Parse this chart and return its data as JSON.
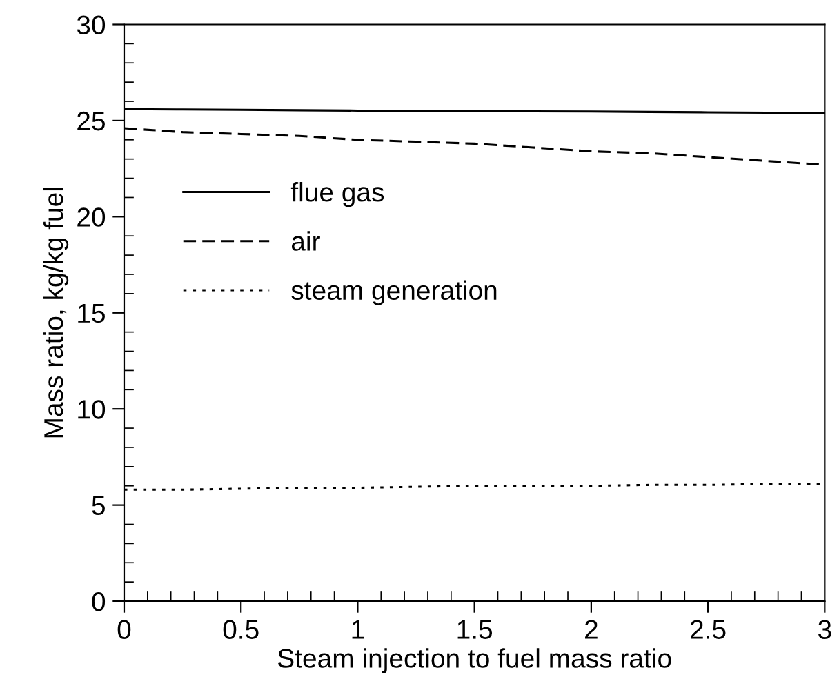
{
  "chart_data": {
    "type": "line",
    "xlabel": "Steam injection to fuel mass ratio",
    "ylabel": "Mass ratio, kg/kg fuel",
    "x": [
      0,
      0.25,
      0.5,
      0.75,
      1,
      1.25,
      1.5,
      1.75,
      2,
      2.25,
      2.5,
      2.75,
      3
    ],
    "series": [
      {
        "name": "flue gas",
        "color": "#000000",
        "line_style": "solid",
        "values": [
          25.6,
          25.58,
          25.56,
          25.54,
          25.52,
          25.5,
          25.5,
          25.48,
          25.47,
          25.45,
          25.43,
          25.41,
          25.4
        ]
      },
      {
        "name": "air",
        "color": "#000000",
        "line_style": "dashed",
        "values": [
          24.6,
          24.4,
          24.3,
          24.2,
          24.0,
          23.9,
          23.8,
          23.6,
          23.4,
          23.3,
          23.1,
          22.9,
          22.7
        ]
      },
      {
        "name": "steam generation",
        "color": "#000000",
        "line_style": "dotted",
        "values": [
          5.8,
          5.8,
          5.85,
          5.9,
          5.9,
          5.95,
          6.0,
          6.0,
          6.0,
          6.05,
          6.05,
          6.1,
          6.1
        ]
      }
    ],
    "xlim": [
      0,
      3
    ],
    "xticks": [
      0,
      0.5,
      1,
      1.5,
      2,
      2.5,
      3
    ],
    "ylim": [
      0,
      30
    ],
    "yticks": [
      0,
      5,
      10,
      15,
      20,
      25,
      30
    ],
    "grid": false,
    "legend": "center left",
    "marker": "none"
  }
}
